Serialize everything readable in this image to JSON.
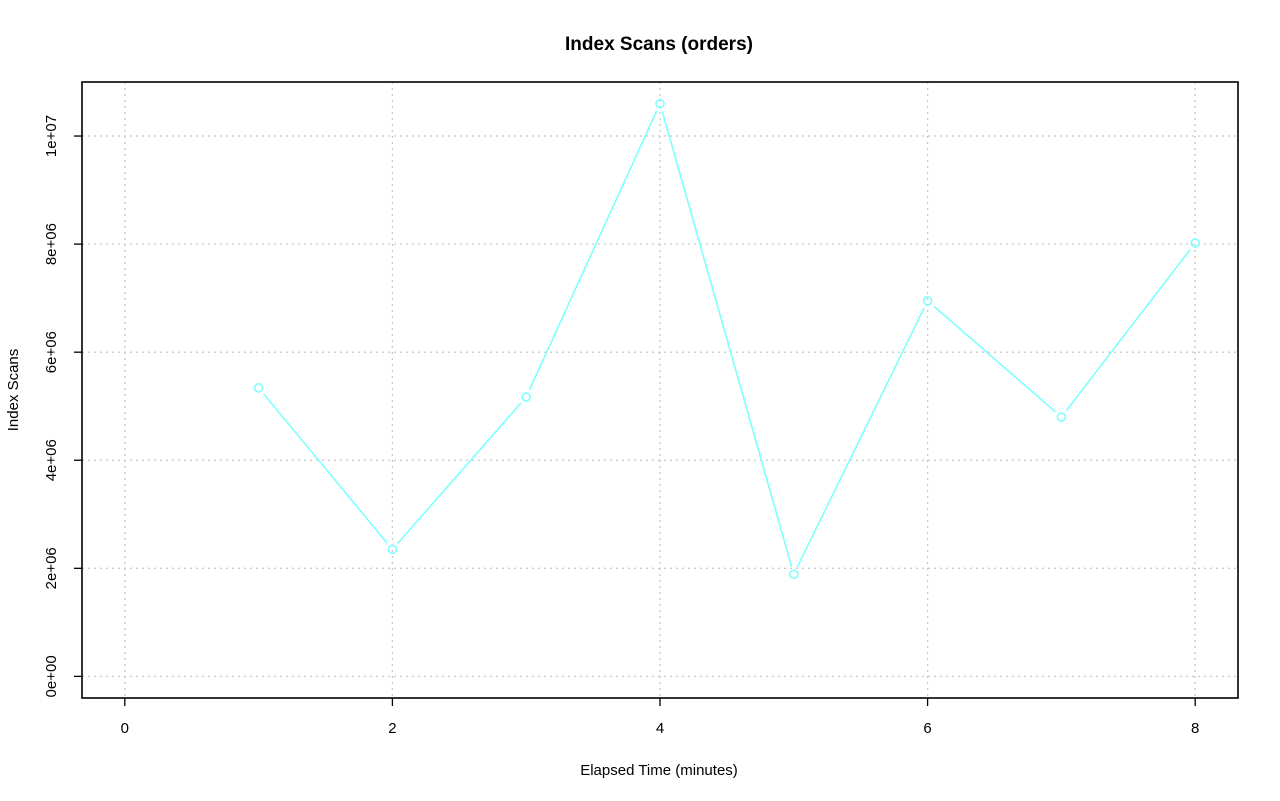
{
  "chart_data": {
    "type": "line",
    "title": "Index Scans (orders)",
    "xlabel": "Elapsed Time (minutes)",
    "ylabel": "Index Scans",
    "x": [
      1,
      2,
      3,
      4,
      5,
      6,
      7,
      8
    ],
    "series": [
      {
        "values": [
          5340000,
          2350000,
          5170000,
          10600000,
          1890000,
          6950000,
          4800000,
          8020000
        ],
        "color": "#7fffff",
        "marker": "circle-open"
      }
    ],
    "xlim": [
      -0.32,
      8.32
    ],
    "ylim": [
      -400000,
      11000000
    ],
    "xticks": [
      0,
      2,
      4,
      6,
      8
    ],
    "xtick_labels": [
      "0",
      "2",
      "4",
      "6",
      "8"
    ],
    "yticks": [
      0,
      2000000,
      4000000,
      6000000,
      8000000,
      10000000
    ],
    "ytick_labels": [
      "0e+00",
      "2e+06",
      "4e+06",
      "6e+06",
      "8e+06",
      "1e+07"
    ],
    "grid": true,
    "grid_style": "dotted"
  }
}
